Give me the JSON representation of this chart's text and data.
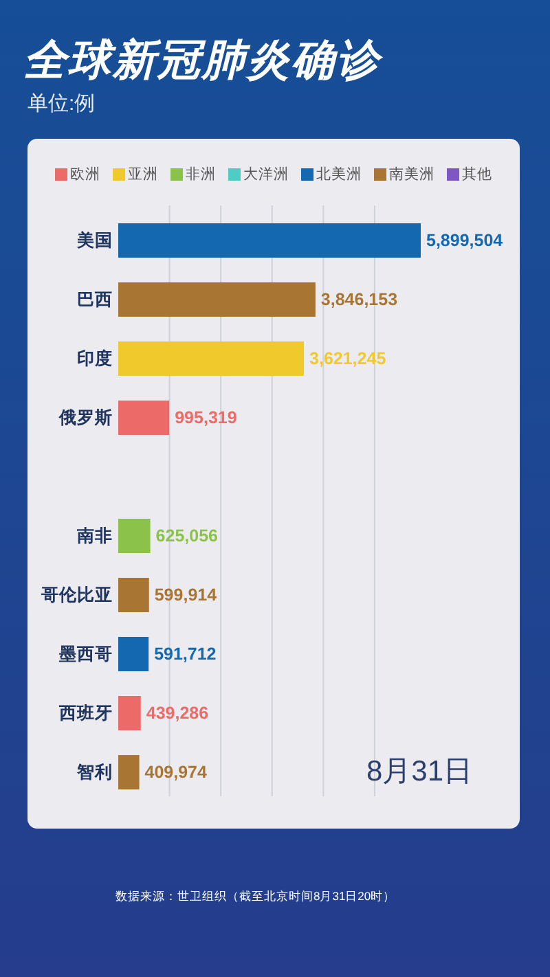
{
  "chart_data": {
    "type": "bar",
    "orientation": "horizontal",
    "stacked": true,
    "title": "全球新冠肺炎确诊",
    "subtitle": "单位:例",
    "categories": [
      "美国",
      "巴西",
      "印度",
      "俄罗斯",
      null,
      "南非",
      "哥伦比亚",
      "墨西哥",
      "西班牙",
      "智利"
    ],
    "series": [
      {
        "name": "欧洲",
        "color": "#ec6a67",
        "values": [
          null,
          null,
          null,
          995319,
          null,
          null,
          null,
          null,
          439286,
          null
        ],
        "value_labels": [
          null,
          null,
          null,
          "995,319",
          null,
          null,
          null,
          null,
          "439,286",
          null
        ]
      },
      {
        "name": "亚洲",
        "color": "#f0c92c",
        "values": [
          null,
          null,
          3621245,
          null,
          null,
          null,
          null,
          null,
          null,
          null
        ],
        "value_labels": [
          null,
          null,
          "3,621,245",
          null,
          null,
          null,
          null,
          null,
          null,
          null
        ]
      },
      {
        "name": "非洲",
        "color": "#8bc34a",
        "values": [
          null,
          null,
          null,
          null,
          null,
          625056,
          null,
          null,
          null,
          null
        ],
        "value_labels": [
          null,
          null,
          null,
          null,
          null,
          "625,056",
          null,
          null,
          null,
          null
        ]
      },
      {
        "name": "大洋洲",
        "color": "#4ecdc4",
        "values": [
          null,
          null,
          null,
          null,
          null,
          null,
          null,
          null,
          null,
          null
        ]
      },
      {
        "name": "北美洲",
        "color": "#1468b0",
        "values": [
          5899504,
          null,
          null,
          null,
          null,
          null,
          null,
          591712,
          null,
          null
        ],
        "value_labels": [
          "5,899,504",
          null,
          null,
          null,
          null,
          null,
          null,
          "591,712",
          null,
          null
        ]
      },
      {
        "name": "南美洲",
        "color": "#a87533",
        "values": [
          null,
          3846153,
          null,
          null,
          null,
          null,
          599914,
          null,
          null,
          409974
        ],
        "value_labels": [
          null,
          "3,846,153",
          null,
          null,
          null,
          null,
          "599,914",
          null,
          null,
          "409,974"
        ]
      },
      {
        "name": "其他",
        "color": "#7e57c2",
        "values": [
          null,
          null,
          null,
          null,
          null,
          null,
          null,
          null,
          null,
          null
        ]
      }
    ],
    "xticks": [
      {
        "value": 1000000,
        "label": null
      },
      {
        "value": 2000000,
        "label": null
      },
      {
        "value": 3000000,
        "label": null
      },
      {
        "value": 4000000,
        "label": null
      },
      {
        "value": 5000000,
        "label": null
      }
    ],
    "grid": "x",
    "tick_labels": "y",
    "legend": "top",
    "annotations": [
      "8月31日",
      "数据来源：世卫组织（截至北京时间8月31日20时）"
    ]
  }
}
